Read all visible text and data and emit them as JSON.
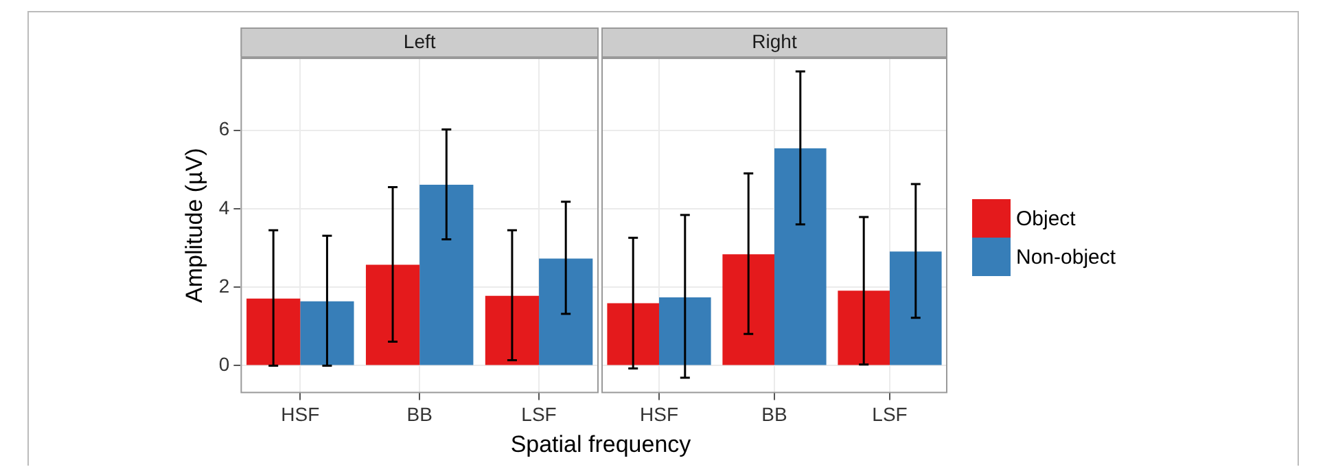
{
  "chart_data": [
    {
      "type": "bar",
      "title": "Left",
      "ylabel": "Amplitude (µV)",
      "xlabel": "Spatial frequency",
      "categories": [
        "HSF",
        "BB",
        "LSF"
      ],
      "series": [
        {
          "color": "#e41a1c",
          "values": [
            1.71,
            2.57,
            1.78
          ],
          "errors": [
            [
              0,
              3.45
            ],
            [
              0.61,
              4.55
            ],
            [
              0.14,
              3.45
            ]
          ]
        },
        {
          "color": "#377eb8",
          "values": [
            1.64,
            4.61,
            2.73
          ],
          "errors": [
            [
              0,
              3.31
            ],
            [
              3.22,
              6.02
            ],
            [
              1.32,
              4.18
            ]
          ]
        }
      ],
      "ylim": [
        -0.7,
        7.85
      ],
      "yticks": [
        0,
        2,
        4,
        6
      ],
      "grid": true,
      "legend": false
    },
    {
      "type": "bar",
      "title": "Right",
      "categories": [
        "HSF",
        "BB",
        "LSF"
      ],
      "series": [
        {
          "name": "Object",
          "color": "#e41a1c",
          "values": [
            1.59,
            2.84,
            1.91
          ],
          "errors": [
            [
              -0.07,
              3.26
            ],
            [
              0.81,
              4.9
            ],
            [
              0.03,
              3.79
            ]
          ]
        },
        {
          "name": "Non-object",
          "color": "#377eb8",
          "values": [
            1.74,
            5.54,
            2.91
          ],
          "errors": [
            [
              -0.31,
              3.84
            ],
            [
              3.6,
              7.5
            ],
            [
              1.22,
              4.63
            ]
          ]
        }
      ],
      "ylim": [
        -0.7,
        7.85
      ],
      "yticks": [
        0,
        2,
        4,
        6
      ],
      "grid": true,
      "legend": "right",
      "tick_labels": "x"
    }
  ]
}
